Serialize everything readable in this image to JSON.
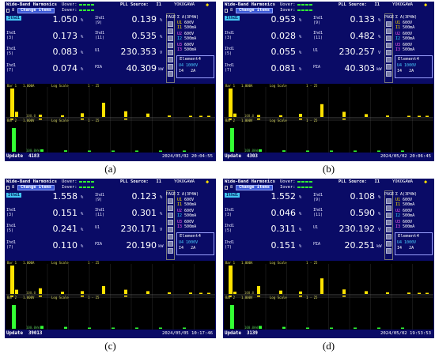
{
  "header": {
    "title": "Wide-Band Harmonics",
    "uover_label": "Uover:",
    "iover_label": "Iover:",
    "pll_label": "PLL Source:",
    "pll_value": "I1",
    "brand": "YOKOGAWA",
    "change_items_label": "Change items"
  },
  "side_panel": {
    "page_label": "PAGE",
    "sigma_label": "Σ A(3P4W)",
    "elements": [
      {
        "u": "U1",
        "u_range": "600V",
        "i": "I1",
        "i_range": "500mA"
      },
      {
        "u": "U2",
        "u_range": "600V",
        "i": "I2",
        "i_range": "500mA"
      },
      {
        "u": "U3",
        "u_range": "600V",
        "i": "I3",
        "i_range": "500mA"
      }
    ],
    "element_box": {
      "title": "Element4",
      "u_label": "U4",
      "u_range": "1000V",
      "i_label": "I4",
      "i_range": "2A"
    }
  },
  "labels": {
    "thd1": "Ithd1",
    "ihd3": "Ihd1\n(3)",
    "ihd5": "Ihd1\n(5)",
    "ihd7": "Ihd1\n(7)",
    "ihd9": "Ihd1\n(9)",
    "ihd11": "Ihd1\n(11)",
    "u1": "U1",
    "p": "PΣA",
    "update": "Update"
  },
  "units": {
    "pct": "%",
    "volt": "V",
    "kw": "kW"
  },
  "graph_labels": {
    "row1_left": "1.000A",
    "row1_scale": "Log Scale",
    "row1_range": "1 - 25",
    "row2_left": "1.000V",
    "row2_scale": "Log Scale",
    "row2_range": "1 - 25",
    "row3_left": "100.0kW"
  },
  "panels": [
    {
      "caption": "(a)",
      "thd1": "1.050",
      "ihd3": "0.173",
      "ihd5": "0.083",
      "ihd7": "0.074",
      "ihd9": "0.139",
      "ihd11": "0.535",
      "u1": "230.353",
      "p": "40.309",
      "update": "4183",
      "timestamp": "2024/05/02 20:04:55",
      "bars1": [
        1.0,
        0.18,
        0.08,
        0.06,
        0.13,
        0.5,
        0.2,
        0.12,
        0.05,
        0.04,
        0.03,
        0.02
      ],
      "bars3": [
        1.0,
        0.1,
        0.06,
        0.04,
        0.03,
        0.02,
        0.02,
        0.02
      ]
    },
    {
      "caption": "(b)",
      "thd1": "0.953",
      "ihd3": "0.028",
      "ihd5": "0.055",
      "ihd7": "0.081",
      "ihd9": "0.133",
      "ihd11": "0.482",
      "u1": "230.257",
      "p": "40.303",
      "update": "4303",
      "timestamp": "2024/05/02 20:06:45",
      "bars1": [
        1.0,
        0.12,
        0.07,
        0.06,
        0.11,
        0.45,
        0.18,
        0.1,
        0.05,
        0.04,
        0.03,
        0.02
      ],
      "bars3": [
        1.0,
        0.1,
        0.06,
        0.04,
        0.03,
        0.02,
        0.02,
        0.02
      ]
    },
    {
      "caption": "(c)",
      "thd1": "1.558",
      "ihd3": "0.151",
      "ihd5": "0.241",
      "ihd7": "0.110",
      "ihd9": "0.123",
      "ihd11": "0.301",
      "u1": "230.171",
      "p": "20.190",
      "update": "39013",
      "timestamp": "2024/05/05 10:17:46",
      "bars1": [
        1.0,
        0.15,
        0.2,
        0.08,
        0.1,
        0.28,
        0.15,
        0.1,
        0.06,
        0.05,
        0.03,
        0.02
      ],
      "bars3": [
        1.0,
        0.12,
        0.08,
        0.05,
        0.03,
        0.02,
        0.02,
        0.02
      ]
    },
    {
      "caption": "(d)",
      "thd1": "1.552",
      "ihd3": "0.046",
      "ihd5": "0.311",
      "ihd7": "0.151",
      "ihd9": "0.108",
      "ihd11": "0.590",
      "u1": "230.192",
      "p": "20.251",
      "update": "3139",
      "timestamp": "2024/05/02 19:53:53",
      "bars1": [
        1.0,
        0.08,
        0.28,
        0.12,
        0.09,
        0.55,
        0.16,
        0.1,
        0.06,
        0.05,
        0.03,
        0.02
      ],
      "bars3": [
        1.0,
        0.12,
        0.08,
        0.05,
        0.03,
        0.02,
        0.02,
        0.02
      ]
    }
  ],
  "colors": {
    "screen_bg": "#0a0b66",
    "bar_current": "#ffe200",
    "bar_power": "#33ff33"
  }
}
